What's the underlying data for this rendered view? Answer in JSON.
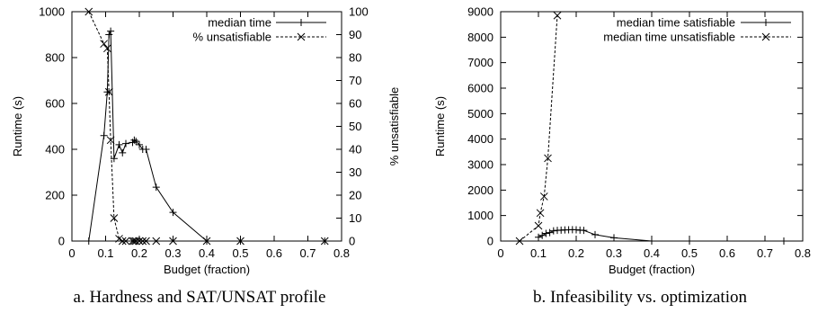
{
  "chart_data": [
    {
      "type": "line",
      "caption": "a.  Hardness and SAT/UNSAT profile",
      "xlabel": "Budget (fraction)",
      "ylabel": "Runtime (s)",
      "y2label": "% unsatisfiable",
      "xlim": [
        0,
        0.8
      ],
      "ylim": [
        0,
        1000
      ],
      "y2lim": [
        0,
        100
      ],
      "xticks": [
        "0",
        "0.1",
        "0.2",
        "0.3",
        "0.4",
        "0.5",
        "0.6",
        "0.7",
        "0.8"
      ],
      "yticks": [
        "0",
        "200",
        "400",
        "600",
        "800",
        "1000"
      ],
      "y2ticks": [
        "0",
        "10",
        "20",
        "30",
        "40",
        "50",
        "60",
        "70",
        "80",
        "90",
        "100"
      ],
      "grid": false,
      "legend_position": "top-right",
      "series": [
        {
          "name": "median time",
          "axis": "left",
          "marker": "plus",
          "line": "solid",
          "x": [
            0.05,
            0.095,
            0.105,
            0.11,
            0.115,
            0.125,
            0.14,
            0.15,
            0.16,
            0.18,
            0.185,
            0.19,
            0.2,
            0.21,
            0.22,
            0.25,
            0.3,
            0.4,
            0.5,
            0.75
          ],
          "y": [
            0,
            460,
            650,
            900,
            915,
            360,
            420,
            385,
            425,
            430,
            440,
            435,
            420,
            400,
            400,
            235,
            125,
            0,
            0,
            0
          ]
        },
        {
          "name": "% unsatisfiable",
          "axis": "right",
          "marker": "cross",
          "line": "dashed",
          "x": [
            0.05,
            0.095,
            0.105,
            0.11,
            0.115,
            0.125,
            0.14,
            0.15,
            0.16,
            0.18,
            0.185,
            0.19,
            0.2,
            0.21,
            0.22,
            0.25,
            0.3,
            0.4,
            0.5,
            0.75
          ],
          "y": [
            100,
            86,
            84,
            65,
            44,
            10,
            1,
            0,
            0,
            0,
            0,
            0,
            0,
            0,
            0,
            0,
            0,
            0,
            0,
            0
          ]
        }
      ]
    },
    {
      "type": "line",
      "caption": "b.  Infeasibility vs. optimization",
      "xlabel": "Budget (fraction)",
      "ylabel": "Runtime (s)",
      "xlim": [
        0,
        0.8
      ],
      "ylim": [
        0,
        9000
      ],
      "xticks": [
        "0",
        "0.1",
        "0.2",
        "0.3",
        "0.4",
        "0.5",
        "0.6",
        "0.7",
        "0.8"
      ],
      "yticks": [
        "0",
        "1000",
        "2000",
        "3000",
        "4000",
        "5000",
        "6000",
        "7000",
        "8000",
        "9000"
      ],
      "grid": false,
      "legend_position": "top-right",
      "series": [
        {
          "name": "median time satisfiable",
          "marker": "plus",
          "line": "solid",
          "x": [
            0.1,
            0.11,
            0.12,
            0.13,
            0.14,
            0.15,
            0.16,
            0.17,
            0.18,
            0.19,
            0.2,
            0.21,
            0.22,
            0.25,
            0.3,
            0.4,
            0.5,
            0.75
          ],
          "y": [
            150,
            220,
            300,
            330,
            400,
            420,
            430,
            435,
            440,
            445,
            440,
            430,
            420,
            250,
            130,
            0,
            0,
            0
          ]
        },
        {
          "name": "median time unsatisfiable",
          "marker": "cross",
          "line": "dashed",
          "x": [
            0.05,
            0.1,
            0.105,
            0.115,
            0.125,
            0.15
          ],
          "y": [
            0,
            600,
            1100,
            1750,
            3250,
            8850
          ]
        }
      ]
    }
  ]
}
